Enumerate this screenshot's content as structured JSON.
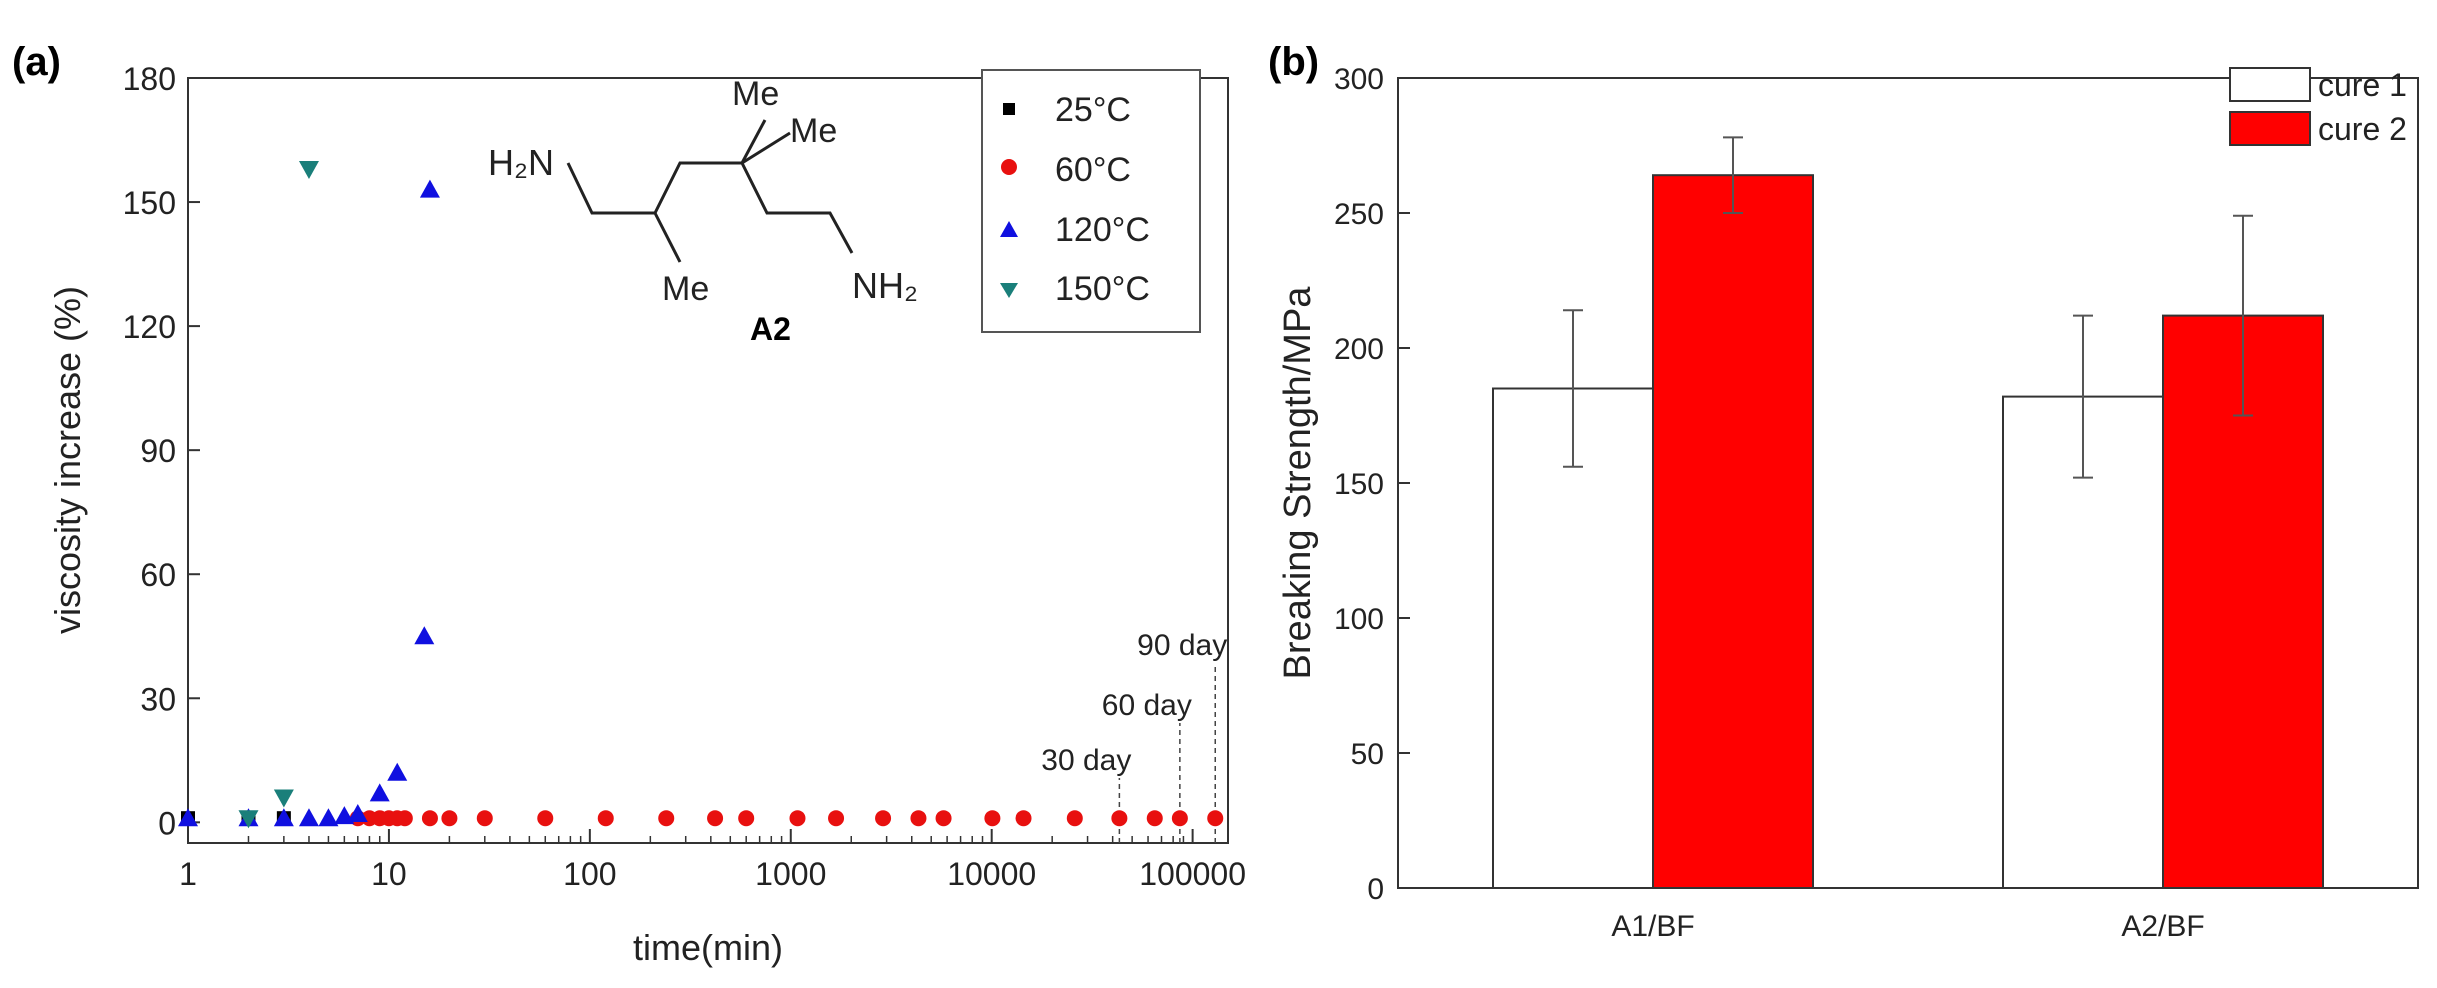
{
  "chart_data": [
    {
      "panel_label": "(a)",
      "type": "scatter",
      "xscale": "log",
      "xlabel": "time(min)",
      "ylabel": "viscosity increase (%)",
      "xlim": [
        1,
        150000
      ],
      "ylim": [
        -5,
        180
      ],
      "xticks": [
        1,
        10,
        100,
        1000,
        10000,
        100000
      ],
      "xtick_labels": [
        "1",
        "10",
        "100",
        "1000",
        "10000",
        "100000"
      ],
      "yticks": [
        0,
        30,
        60,
        90,
        120,
        150,
        180
      ],
      "ytick_labels": [
        "0",
        "30",
        "60",
        "90",
        "120",
        "150",
        "180"
      ],
      "legend_position": "top-right",
      "series": [
        {
          "name": "25°C",
          "marker": "square",
          "color": "#000000",
          "x": [
            1,
            2,
            3
          ],
          "y": [
            1,
            1,
            1
          ]
        },
        {
          "name": "60°C",
          "marker": "circle",
          "color": "#e8100f",
          "x": [
            7,
            8,
            9,
            10,
            11,
            12,
            16,
            20,
            30,
            60,
            120,
            240,
            420,
            600,
            1080,
            1680,
            2880,
            4320,
            5760,
            10080,
            14400,
            25920,
            43200,
            64800,
            86400,
            129600
          ],
          "y": [
            1,
            1,
            1,
            1,
            1,
            1,
            1,
            1,
            1,
            1,
            1,
            1,
            1,
            1,
            1,
            1,
            1,
            1,
            1,
            1,
            1,
            1,
            1,
            1,
            1,
            1
          ]
        },
        {
          "name": "120°C",
          "marker": "triangle-up",
          "color": "#1010e0",
          "x": [
            1,
            2,
            3,
            4,
            5,
            6,
            7,
            9,
            11,
            15,
            16
          ],
          "y": [
            1,
            1,
            1,
            1,
            1,
            1.5,
            2,
            7,
            12,
            45,
            153
          ]
        },
        {
          "name": "150°C",
          "marker": "triangle-down",
          "color": "#1a7f7a",
          "x": [
            2,
            3,
            4
          ],
          "y": [
            1,
            6,
            158
          ]
        }
      ],
      "annotations": [
        {
          "text": "30 day",
          "x": 43200
        },
        {
          "text": "60 day",
          "x": 86400
        },
        {
          "text": "90 day",
          "x": 129600
        }
      ],
      "structure": {
        "label": "A2",
        "groups": [
          "H₂N",
          "NH₂",
          "Me",
          "Me",
          "Me"
        ]
      }
    },
    {
      "panel_label": "(b)",
      "type": "bar",
      "categories": [
        "A1/BF",
        "A2/BF"
      ],
      "ylabel": "Breaking Strength/MPa",
      "xlabel": "",
      "ylim": [
        0,
        300
      ],
      "yticks": [
        0,
        50,
        100,
        150,
        200,
        250,
        300
      ],
      "ytick_labels": [
        "0",
        "50",
        "100",
        "150",
        "200",
        "250",
        "300"
      ],
      "legend_position": "top-right",
      "series": [
        {
          "name": "cure 1",
          "color": "#ffffff",
          "values": [
            185,
            182
          ],
          "errors": [
            29,
            30
          ]
        },
        {
          "name": "cure 2",
          "color": "#ff0000",
          "values": [
            264,
            212
          ],
          "errors": [
            14,
            37
          ]
        }
      ]
    }
  ]
}
